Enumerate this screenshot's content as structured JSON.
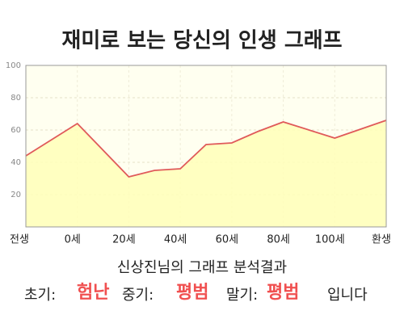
{
  "chart_data": {
    "type": "area",
    "title": "재미로 보는 당신의 인생 그래프",
    "x": [
      -20,
      0,
      20,
      30,
      40,
      50,
      60,
      70,
      80,
      100,
      120
    ],
    "series": [
      {
        "color": "#e05a5a",
        "fill": "#ffffb8",
        "values": [
          44,
          64,
          31,
          35,
          36,
          51,
          52,
          59,
          65,
          55,
          66
        ]
      }
    ],
    "xlim": [
      -20,
      120
    ],
    "xticks": [
      {
        "value": -20,
        "label": "전생"
      },
      {
        "value": 0,
        "label": "0세"
      },
      {
        "value": 20,
        "label": "20세"
      },
      {
        "value": 40,
        "label": "40세"
      },
      {
        "value": 60,
        "label": "60세"
      },
      {
        "value": 80,
        "label": "80세"
      },
      {
        "value": 100,
        "label": "100세"
      },
      {
        "value": 120,
        "label": "환생"
      }
    ],
    "ylim": [
      0,
      100
    ],
    "yticks": [
      20,
      40,
      60,
      80,
      100
    ],
    "grid": true,
    "background": "#fffff0"
  },
  "analysis": {
    "heading": "신상진님의 그래프 분석결과",
    "early_label": "초기:",
    "early": "험난",
    "middle_label": "중기:",
    "middle": "평범",
    "late_label": "말기:",
    "late": "평범",
    "ending": "입니다"
  }
}
